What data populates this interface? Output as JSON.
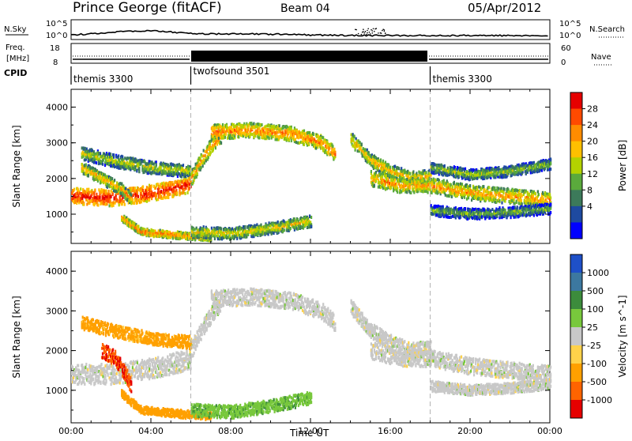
{
  "header": {
    "station": "Prince George (fitACF)",
    "beam": "Beam 04",
    "date": "05/Apr/2012"
  },
  "strip_labels": {
    "nsky": "N.Sky",
    "nsearch": "N.Search",
    "freq_top": "Freq.",
    "freq_unit": "[MHz]",
    "nave": "Nave",
    "cpid": "CPID"
  },
  "strip_ticks": {
    "n_left_top": "10^5",
    "n_left_bottom": "10^0",
    "n_right_top": "10^5",
    "n_right_bottom": "10^0",
    "freq_top": "18",
    "freq_bottom": "8",
    "nave_top": "60",
    "nave_bottom": "0"
  },
  "cpid_segments": [
    {
      "label": "themis 3300",
      "start_hour": 0,
      "end_hour": 6
    },
    {
      "label": "twofsound 3501",
      "start_hour": 6,
      "end_hour": 18
    },
    {
      "label": "themis 3300",
      "start_hour": 18,
      "end_hour": 24
    }
  ],
  "power_colorbar": {
    "label": "Power [dB]",
    "ticks": [
      "28",
      "24",
      "20",
      "16",
      "12",
      "8",
      "4"
    ],
    "colors": [
      "#e60000",
      "#ff4a00",
      "#ff8c00",
      "#ffc000",
      "#b4d200",
      "#5aaa3c",
      "#3c7a5a",
      "#1e4aa0",
      "#0000ff"
    ]
  },
  "velocity_colorbar": {
    "label": "Velocity [m s^-1]",
    "ticks": [
      "1000",
      "500",
      "100",
      "25",
      "-25",
      "-100",
      "-500",
      "-1000"
    ],
    "colors": [
      "#1e50c8",
      "#3c78a0",
      "#3c8c3c",
      "#78c83c",
      "#c8c8c8",
      "#ffd24a",
      "#ffa000",
      "#ff6400",
      "#e60000"
    ]
  },
  "chart_data": [
    {
      "type": "heatmap",
      "name": "power",
      "ylabel": "Slant Range [km]",
      "ylim": [
        180,
        4500
      ],
      "y_ticks": [
        "4000",
        "3000",
        "2000",
        "1000"
      ],
      "xlim": [
        0,
        24
      ],
      "vline_hours": [
        6,
        18
      ],
      "bands": [
        {
          "x": [
            0.0,
            2.0,
            3.5,
            5.0,
            6.0
          ],
          "y": [
            1500,
            1450,
            1550,
            1700,
            1850
          ],
          "width": 280,
          "power": 24
        },
        {
          "x": [
            0.5,
            1.5,
            2.5,
            3.0
          ],
          "y": [
            2300,
            2000,
            1700,
            1400
          ],
          "width": 200,
          "power": 14
        },
        {
          "x": [
            2.5,
            3.5,
            5.0,
            6.0,
            7.0
          ],
          "y": [
            900,
            500,
            420,
            380,
            350
          ],
          "width": 120,
          "power": 18
        },
        {
          "x": [
            0.5,
            2.0,
            4.0,
            6.0
          ],
          "y": [
            2700,
            2500,
            2300,
            2200
          ],
          "width": 220,
          "power": 10
        },
        {
          "x": [
            6.0,
            6.5,
            7.0,
            7.5
          ],
          "y": [
            2000,
            2500,
            2900,
            3200
          ],
          "width": 260,
          "power": 16
        },
        {
          "x": [
            7.0,
            9.0,
            11.0,
            12.5,
            13.2
          ],
          "y": [
            3300,
            3350,
            3250,
            3000,
            2700
          ],
          "width": 250,
          "power": 18
        },
        {
          "x": [
            6.0,
            8.0,
            10.0,
            12.0
          ],
          "y": [
            500,
            450,
            600,
            800
          ],
          "width": 200,
          "power": 12
        },
        {
          "x": [
            14.0,
            15.0,
            16.0,
            17.0,
            18.0
          ],
          "y": [
            3100,
            2500,
            2200,
            2000,
            2050
          ],
          "width": 230,
          "power": 14
        },
        {
          "x": [
            15.0,
            16.5,
            18.0,
            20.0,
            22.0,
            24.0
          ],
          "y": [
            2000,
            1800,
            1800,
            1600,
            1500,
            1400
          ],
          "width": 260,
          "power": 16
        },
        {
          "x": [
            18.0,
            20.0,
            22.0,
            24.0
          ],
          "y": [
            2300,
            2100,
            2200,
            2400
          ],
          "width": 180,
          "power": 8
        },
        {
          "x": [
            18.0,
            20.0,
            22.0,
            24.0
          ],
          "y": [
            1100,
            1000,
            1050,
            1150
          ],
          "width": 180,
          "power": 6
        }
      ]
    },
    {
      "type": "heatmap",
      "name": "velocity",
      "ylabel": "Slant Range [km]",
      "xlabel": "Time UT",
      "ylim": [
        180,
        4500
      ],
      "y_ticks": [
        "4000",
        "3000",
        "2000",
        "1000"
      ],
      "x_ticks": [
        "00:00",
        "04:00",
        "08:00",
        "12:00",
        "16:00",
        "20:00",
        "00:00"
      ],
      "xlim": [
        0,
        24
      ],
      "vline_hours": [
        6,
        18
      ],
      "bands": [
        {
          "x": [
            0.0,
            2.0,
            3.5,
            5.0,
            6.0
          ],
          "y": [
            1400,
            1400,
            1500,
            1650,
            1800
          ],
          "width": 320,
          "velocity": 0
        },
        {
          "x": [
            1.5,
            2.2,
            2.7,
            3.0
          ],
          "y": [
            2000,
            1800,
            1400,
            1100
          ],
          "width": 230,
          "velocity": -900
        },
        {
          "x": [
            2.5,
            3.5,
            5.0,
            6.0,
            7.0
          ],
          "y": [
            900,
            500,
            420,
            380,
            350
          ],
          "width": 120,
          "velocity": -300
        },
        {
          "x": [
            0.5,
            2.0,
            4.0,
            6.0
          ],
          "y": [
            2700,
            2500,
            2300,
            2200
          ],
          "width": 200,
          "velocity": -150
        },
        {
          "x": [
            6.0,
            6.5,
            7.0,
            7.5
          ],
          "y": [
            2000,
            2500,
            2900,
            3200
          ],
          "width": 260,
          "velocity": 0
        },
        {
          "x": [
            7.0,
            9.0,
            11.0,
            12.5,
            13.2
          ],
          "y": [
            3300,
            3350,
            3250,
            3000,
            2700
          ],
          "width": 260,
          "velocity": 0
        },
        {
          "x": [
            6.0,
            8.0,
            10.0,
            12.0
          ],
          "y": [
            500,
            450,
            600,
            800
          ],
          "width": 200,
          "velocity": 80
        },
        {
          "x": [
            14.0,
            15.0,
            16.0,
            17.0,
            18.0
          ],
          "y": [
            3100,
            2500,
            2200,
            2000,
            2050
          ],
          "width": 230,
          "velocity": 0
        },
        {
          "x": [
            15.0,
            16.5,
            18.0,
            20.0,
            22.0,
            24.0
          ],
          "y": [
            2000,
            1800,
            1800,
            1600,
            1500,
            1400
          ],
          "width": 260,
          "velocity": 0
        },
        {
          "x": [
            18.0,
            20.0,
            22.0,
            24.0
          ],
          "y": [
            1100,
            1000,
            1050,
            1150
          ],
          "width": 160,
          "velocity": 0
        }
      ]
    }
  ]
}
